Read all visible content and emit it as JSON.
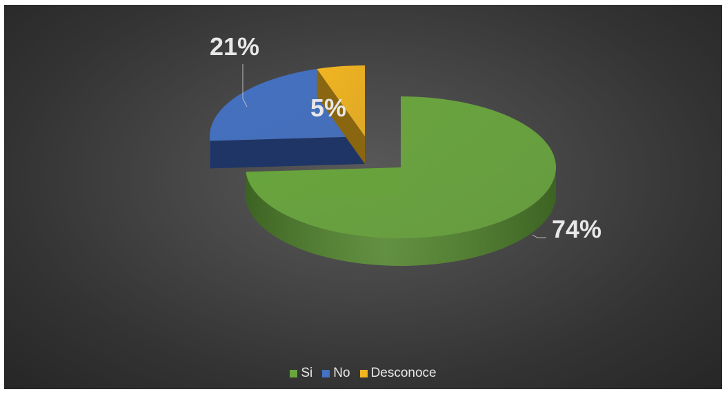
{
  "chart_data": {
    "type": "pie",
    "style": "3d-exploded",
    "categories": [
      "Si",
      "No",
      "Desconoce"
    ],
    "values": [
      74,
      21,
      5
    ],
    "value_labels": [
      "74%",
      "21%",
      "5%"
    ],
    "colors": [
      "#6aa63e",
      "#4472c4",
      "#f2b521"
    ],
    "side_colors": [
      "#3d6323",
      "#1f3566",
      "#8a6610"
    ],
    "legend_position": "bottom",
    "title": ""
  }
}
